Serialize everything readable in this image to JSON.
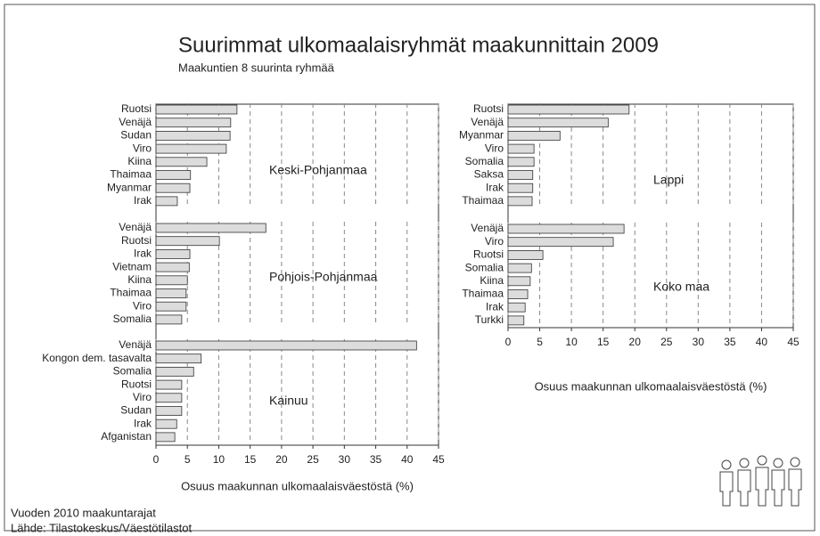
{
  "title": "Suurimmat ulkomaalaisryhmät maakunnittain 2009",
  "subtitle": "Maakuntien 8 suurinta ryhmää",
  "notes": [
    "Vuoden 2010 maakuntarajat",
    "Lähde: Tilastokeskus/Väestötilastot"
  ],
  "chart_data": [
    {
      "type": "bar",
      "orientation": "horizontal",
      "label": "Keski-Pohjanmaa",
      "color": "#dcdcdc",
      "categories": [
        "Ruotsi",
        "Venäjä",
        "Sudan",
        "Viro",
        "Kiina",
        "Thaimaa",
        "Myanmar",
        "Irak"
      ],
      "values": [
        12.9,
        11.9,
        11.8,
        11.2,
        8.1,
        5.5,
        5.4,
        3.4
      ],
      "xlim": [
        0,
        45
      ],
      "xticks": [
        0,
        5,
        10,
        15,
        20,
        25,
        30,
        35,
        40,
        45
      ],
      "grid": true
    },
    {
      "type": "bar",
      "orientation": "horizontal",
      "label": "Pohjois-Pohjanmaa",
      "color": "#dcdcdc",
      "categories": [
        "Venäjä",
        "Ruotsi",
        "Irak",
        "Vietnam",
        "Kiina",
        "Thaimaa",
        "Viro",
        "Somalia"
      ],
      "values": [
        17.5,
        10.1,
        5.4,
        5.3,
        5.0,
        4.8,
        4.8,
        4.1
      ],
      "xlim": [
        0,
        45
      ],
      "xticks": [
        0,
        5,
        10,
        15,
        20,
        25,
        30,
        35,
        40,
        45
      ],
      "grid": true
    },
    {
      "type": "bar",
      "orientation": "horizontal",
      "label": "Kainuu",
      "color": "#dcdcdc",
      "categories": [
        "Venäjä",
        "Kongon dem. tasavalta",
        "Somalia",
        "Ruotsi",
        "Viro",
        "Sudan",
        "Irak",
        "Afganistan"
      ],
      "values": [
        41.5,
        7.2,
        6.0,
        4.1,
        4.1,
        4.1,
        3.3,
        3.0
      ],
      "xlim": [
        0,
        45
      ],
      "xticks": [
        0,
        5,
        10,
        15,
        20,
        25,
        30,
        35,
        40,
        45
      ],
      "grid": true,
      "xlabel": "Osuus maakunnan ulkomaalaisväestöstä (%)"
    },
    {
      "type": "bar",
      "orientation": "horizontal",
      "label": "Lappi",
      "color": "#dcdcdc",
      "categories": [
        "Ruotsi",
        "Venäjä",
        "Myanmar",
        "Viro",
        "Somalia",
        "Saksa",
        "Irak",
        "Thaimaa"
      ],
      "values": [
        19.1,
        15.8,
        8.2,
        4.1,
        4.1,
        3.9,
        3.9,
        3.8
      ],
      "xlim": [
        0,
        45
      ],
      "xticks": [
        0,
        5,
        10,
        15,
        20,
        25,
        30,
        35,
        40,
        45
      ],
      "grid": true
    },
    {
      "type": "bar",
      "orientation": "horizontal",
      "label": "Koko maa",
      "color": "#dcdcdc",
      "categories": [
        "Venäjä",
        "Viro",
        "Ruotsi",
        "Somalia",
        "Kiina",
        "Thaimaa",
        "Irak",
        "Turkki"
      ],
      "values": [
        18.3,
        16.6,
        5.5,
        3.7,
        3.5,
        3.1,
        2.7,
        2.5
      ],
      "xlim": [
        0,
        45
      ],
      "xticks": [
        0,
        5,
        10,
        15,
        20,
        25,
        30,
        35,
        40,
        45
      ],
      "grid": true,
      "xlabel": "Osuus maakunnan ulkomaalaisväestöstä (%)"
    }
  ]
}
